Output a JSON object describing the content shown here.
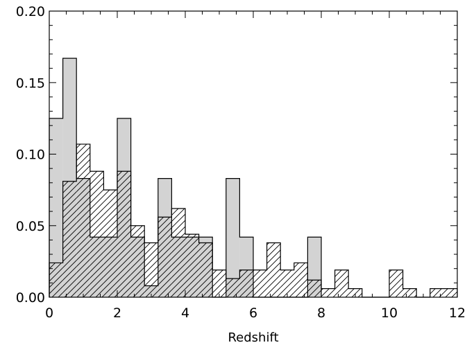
{
  "chart_data": {
    "type": "histogram",
    "title": "",
    "xlabel": "Redshift",
    "ylabel": "",
    "xlim": [
      0,
      12
    ],
    "ylim": [
      0,
      0.2
    ],
    "x_ticks": [
      "0",
      "2",
      "4",
      "6",
      "8",
      "10",
      "12"
    ],
    "y_ticks": [
      "0.00",
      "0.05",
      "0.10",
      "0.15",
      "0.20"
    ],
    "grid": false,
    "legend": "none",
    "bin_width": 0.4,
    "series": [
      {
        "style": "filled",
        "color": "#d3d3d3",
        "bins": [
          {
            "x0": 0.0,
            "x1": 0.4,
            "y": 0.125
          },
          {
            "x0": 0.4,
            "x1": 0.8,
            "y": 0.167
          },
          {
            "x0": 0.8,
            "x1": 1.2,
            "y": 0.083
          },
          {
            "x0": 1.2,
            "x1": 1.6,
            "y": 0.042
          },
          {
            "x0": 1.6,
            "x1": 2.0,
            "y": 0.042
          },
          {
            "x0": 2.0,
            "x1": 2.4,
            "y": 0.125
          },
          {
            "x0": 2.4,
            "x1": 2.8,
            "y": 0.042
          },
          {
            "x0": 2.8,
            "x1": 3.2,
            "y": 0.008
          },
          {
            "x0": 3.2,
            "x1": 3.6,
            "y": 0.083
          },
          {
            "x0": 3.6,
            "x1": 4.0,
            "y": 0.042
          },
          {
            "x0": 4.0,
            "x1": 4.4,
            "y": 0.042
          },
          {
            "x0": 4.4,
            "x1": 4.8,
            "y": 0.042
          },
          {
            "x0": 4.8,
            "x1": 5.2,
            "y": 0.0
          },
          {
            "x0": 5.2,
            "x1": 5.6,
            "y": 0.083
          },
          {
            "x0": 5.6,
            "x1": 6.0,
            "y": 0.042
          },
          {
            "x0": 6.0,
            "x1": 7.6,
            "y": 0.0
          },
          {
            "x0": 7.6,
            "x1": 8.0,
            "y": 0.042
          }
        ]
      },
      {
        "style": "hatched",
        "color": "#000000",
        "bins": [
          {
            "x0": 0.0,
            "x1": 0.4,
            "y": 0.024
          },
          {
            "x0": 0.4,
            "x1": 0.8,
            "y": 0.081
          },
          {
            "x0": 0.8,
            "x1": 1.2,
            "y": 0.107
          },
          {
            "x0": 1.2,
            "x1": 1.6,
            "y": 0.088
          },
          {
            "x0": 1.6,
            "x1": 2.0,
            "y": 0.075
          },
          {
            "x0": 2.0,
            "x1": 2.4,
            "y": 0.088
          },
          {
            "x0": 2.4,
            "x1": 2.8,
            "y": 0.05
          },
          {
            "x0": 2.8,
            "x1": 3.2,
            "y": 0.038
          },
          {
            "x0": 3.2,
            "x1": 3.6,
            "y": 0.056
          },
          {
            "x0": 3.6,
            "x1": 4.0,
            "y": 0.062
          },
          {
            "x0": 4.0,
            "x1": 4.4,
            "y": 0.044
          },
          {
            "x0": 4.4,
            "x1": 4.8,
            "y": 0.038
          },
          {
            "x0": 4.8,
            "x1": 5.2,
            "y": 0.019
          },
          {
            "x0": 5.2,
            "x1": 5.6,
            "y": 0.013
          },
          {
            "x0": 5.6,
            "x1": 6.0,
            "y": 0.019
          },
          {
            "x0": 6.0,
            "x1": 6.4,
            "y": 0.019
          },
          {
            "x0": 6.4,
            "x1": 6.8,
            "y": 0.038
          },
          {
            "x0": 6.8,
            "x1": 7.2,
            "y": 0.019
          },
          {
            "x0": 7.2,
            "x1": 7.6,
            "y": 0.024
          },
          {
            "x0": 7.6,
            "x1": 8.0,
            "y": 0.012
          },
          {
            "x0": 8.0,
            "x1": 8.4,
            "y": 0.006
          },
          {
            "x0": 8.4,
            "x1": 8.8,
            "y": 0.019
          },
          {
            "x0": 8.8,
            "x1": 9.2,
            "y": 0.006
          },
          {
            "x0": 9.2,
            "x1": 9.6,
            "y": 0.0
          },
          {
            "x0": 9.6,
            "x1": 10.0,
            "y": 0.0
          },
          {
            "x0": 10.0,
            "x1": 10.4,
            "y": 0.019
          },
          {
            "x0": 10.4,
            "x1": 10.8,
            "y": 0.006
          },
          {
            "x0": 10.8,
            "x1": 11.2,
            "y": 0.0
          },
          {
            "x0": 11.2,
            "x1": 11.6,
            "y": 0.006
          },
          {
            "x0": 11.6,
            "x1": 12.0,
            "y": 0.006
          }
        ]
      }
    ]
  }
}
